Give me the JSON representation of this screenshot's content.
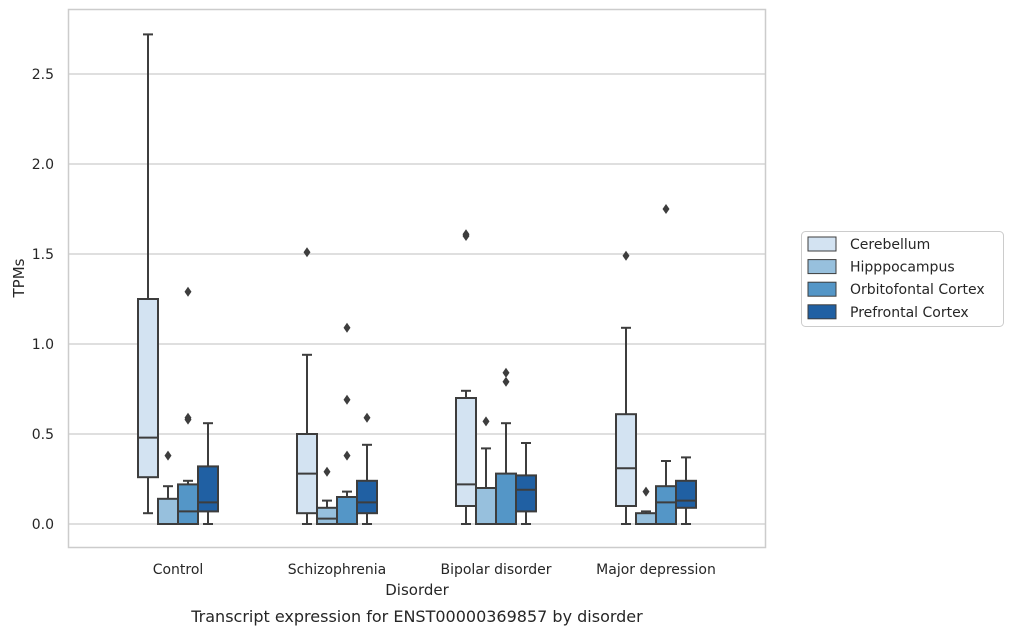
{
  "chart_data": {
    "type": "box",
    "title": "",
    "caption": "Transcript expression for ENST00000369857 by disorder",
    "xlabel": "Disorder",
    "ylabel": "TPMs",
    "ylim": [
      -0.13,
      2.87
    ],
    "yticks": [
      "0.0",
      "0.5",
      "1.0",
      "1.5",
      "2.0",
      "2.5"
    ],
    "grid": "horizontal",
    "legend_position": "right",
    "categories": [
      "Control",
      "Schizophrenia",
      "Bipolar disorder",
      "Major depression"
    ],
    "series": [
      {
        "name": "Cerebellum",
        "color": "#d3e3f2",
        "boxes": [
          {
            "whislo": 0.06,
            "q1": 0.26,
            "med": 0.48,
            "q3": 1.25,
            "whishi": 2.72,
            "fliers": []
          },
          {
            "whislo": 0.0,
            "q1": 0.06,
            "med": 0.28,
            "q3": 0.5,
            "whishi": 0.94,
            "fliers": [
              1.51
            ]
          },
          {
            "whislo": 0.0,
            "q1": 0.1,
            "med": 0.22,
            "q3": 0.7,
            "whishi": 0.74,
            "fliers": [
              1.6,
              1.61
            ]
          },
          {
            "whislo": 0.0,
            "q1": 0.1,
            "med": 0.31,
            "q3": 0.61,
            "whishi": 1.09,
            "fliers": [
              1.49
            ]
          }
        ]
      },
      {
        "name": "Hipppocampus",
        "color": "#97c0dd",
        "boxes": [
          {
            "whislo": 0.0,
            "q1": 0.0,
            "med": 0.0,
            "q3": 0.14,
            "whishi": 0.21,
            "fliers": [
              0.38
            ]
          },
          {
            "whislo": 0.0,
            "q1": 0.0,
            "med": 0.03,
            "q3": 0.09,
            "whishi": 0.13,
            "fliers": [
              0.29
            ]
          },
          {
            "whislo": 0.0,
            "q1": 0.0,
            "med": 0.0,
            "q3": 0.2,
            "whishi": 0.42,
            "fliers": [
              0.57
            ]
          },
          {
            "whislo": 0.0,
            "q1": 0.0,
            "med": 0.0,
            "q3": 0.06,
            "whishi": 0.07,
            "fliers": [
              0.18
            ]
          }
        ]
      },
      {
        "name": "Orbitofontal Cortex",
        "color": "#5496c7",
        "boxes": [
          {
            "whislo": 0.0,
            "q1": 0.0,
            "med": 0.07,
            "q3": 0.22,
            "whishi": 0.24,
            "fliers": [
              0.58,
              0.59,
              1.29
            ]
          },
          {
            "whislo": 0.0,
            "q1": 0.0,
            "med": 0.0,
            "q3": 0.15,
            "whishi": 0.18,
            "fliers": [
              0.38,
              0.69,
              1.09
            ]
          },
          {
            "whislo": 0.0,
            "q1": 0.0,
            "med": 0.0,
            "q3": 0.28,
            "whishi": 0.56,
            "fliers": [
              0.79,
              0.84
            ]
          },
          {
            "whislo": 0.0,
            "q1": 0.0,
            "med": 0.12,
            "q3": 0.21,
            "whishi": 0.35,
            "fliers": [
              1.75
            ]
          }
        ]
      },
      {
        "name": "Prefrontal Cortex",
        "color": "#2060a3",
        "boxes": [
          {
            "whislo": 0.0,
            "q1": 0.07,
            "med": 0.12,
            "q3": 0.32,
            "whishi": 0.56,
            "fliers": []
          },
          {
            "whislo": 0.0,
            "q1": 0.06,
            "med": 0.12,
            "q3": 0.24,
            "whishi": 0.44,
            "fliers": [
              0.59
            ]
          },
          {
            "whislo": 0.0,
            "q1": 0.07,
            "med": 0.19,
            "q3": 0.27,
            "whishi": 0.45,
            "fliers": []
          },
          {
            "whislo": 0.0,
            "q1": 0.09,
            "med": 0.13,
            "q3": 0.24,
            "whishi": 0.37,
            "fliers": []
          }
        ]
      }
    ]
  }
}
